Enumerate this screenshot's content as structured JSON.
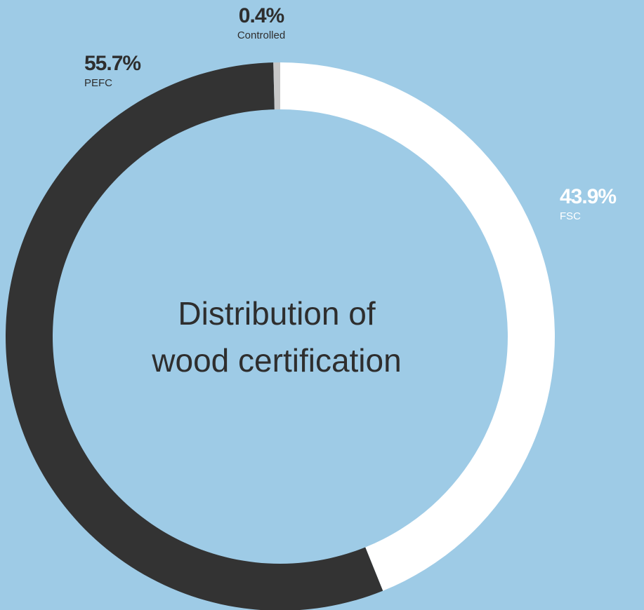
{
  "chart_data": {
    "type": "donut",
    "title": [
      "Distribution of",
      "wood certification"
    ],
    "categories": [
      "FSC",
      "PEFC",
      "Controlled"
    ],
    "values": [
      43.9,
      55.7,
      0.4
    ],
    "value_labels": [
      "43.9%",
      "55.7%",
      "0.4%"
    ],
    "colors": [
      "#ffffff",
      "#333333",
      "#c8c8c8"
    ]
  }
}
